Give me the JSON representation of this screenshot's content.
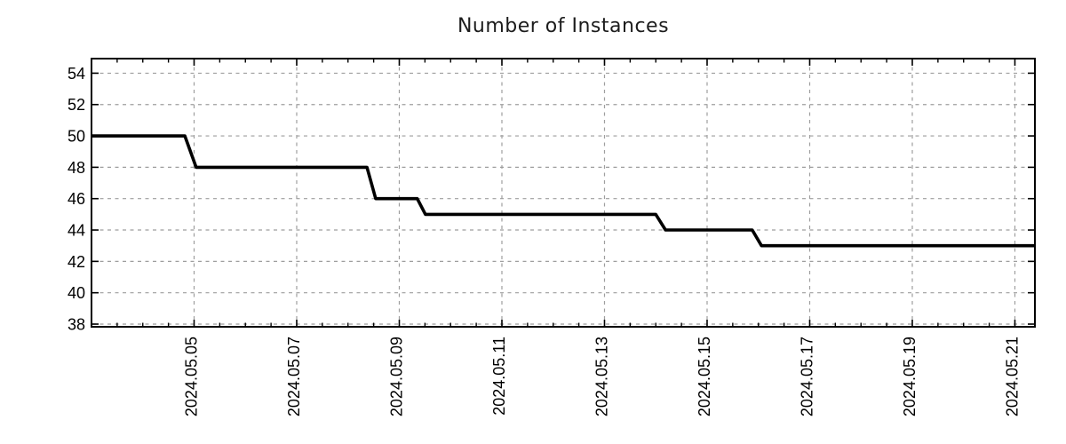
{
  "chart_data": {
    "type": "line",
    "subtype": "step",
    "title": "Number of Instances",
    "xlabel": "",
    "ylabel": "",
    "x_unit": "days since 2024.05.03 00:00",
    "series": [
      {
        "name": "instances",
        "color": "#000000",
        "points": [
          [
            0.0,
            50
          ],
          [
            1.82,
            50
          ],
          [
            2.04,
            48
          ],
          [
            5.37,
            48
          ],
          [
            5.54,
            46
          ],
          [
            6.35,
            46
          ],
          [
            6.51,
            45
          ],
          [
            11.0,
            45
          ],
          [
            11.19,
            44
          ],
          [
            12.88,
            44
          ],
          [
            13.06,
            43
          ],
          [
            18.39,
            43
          ]
        ]
      }
    ],
    "steps_readable": [
      {
        "value": 50,
        "from": "2024.05.03 (left edge)",
        "until": "~2024.05.05 00:00"
      },
      {
        "value": 48,
        "from": "~2024.05.05 00:00",
        "until": "~2024.05.08 09:00"
      },
      {
        "value": 46,
        "from": "~2024.05.08 13:00",
        "until": "~2024.05.09 08:00"
      },
      {
        "value": 45,
        "from": "~2024.05.09 12:00",
        "until": "~2024.05.14 00:00"
      },
      {
        "value": 44,
        "from": "~2024.05.14 05:00",
        "until": "~2024.05.15 21:00"
      },
      {
        "value": 43,
        "from": "~2024.05.16 01:00",
        "until": "2024.05.21 (right edge)"
      }
    ],
    "xlim": [
      0,
      18.39
    ],
    "ylim": [
      37.83,
      54.93
    ],
    "x_major_ticks": [
      {
        "x": 2,
        "label": "2024.05.05"
      },
      {
        "x": 4,
        "label": "2024.05.07"
      },
      {
        "x": 6,
        "label": "2024.05.09"
      },
      {
        "x": 8,
        "label": "2024.05.11"
      },
      {
        "x": 10,
        "label": "2024.05.13"
      },
      {
        "x": 12,
        "label": "2024.05.15"
      },
      {
        "x": 14,
        "label": "2024.05.17"
      },
      {
        "x": 16,
        "label": "2024.05.19"
      },
      {
        "x": 18,
        "label": "2024.05.21"
      }
    ],
    "x_minor_tick_step": 0.5,
    "y_ticks": [
      38,
      40,
      42,
      44,
      46,
      48,
      50,
      52,
      54
    ],
    "grid": {
      "show": true,
      "style": "dashed",
      "on_x_majors": true,
      "on_y_ticks": true
    },
    "legend": {
      "show": false
    },
    "line_width": 3.6,
    "colors": {
      "line": "#000000",
      "border": "#000000",
      "grid": "#9e9e9e",
      "background": "#ffffff",
      "text": "#000000",
      "title": "#1c1c1c"
    }
  }
}
